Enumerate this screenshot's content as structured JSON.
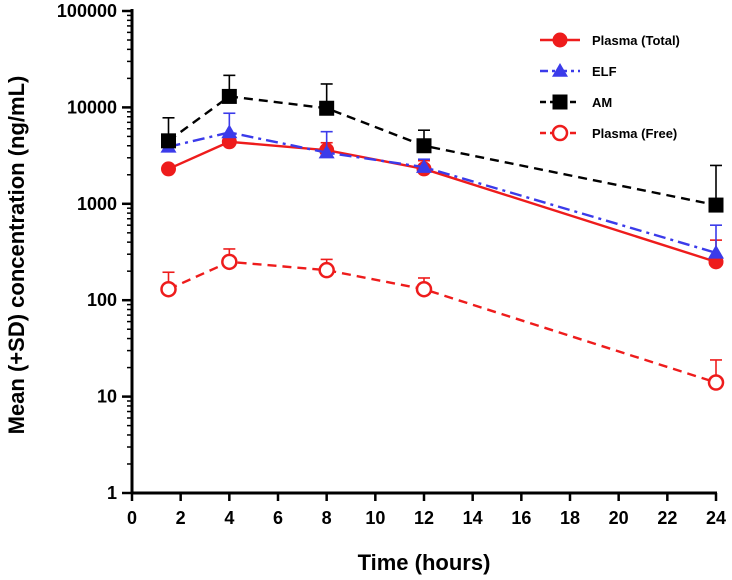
{
  "chart_data": {
    "type": "line",
    "xlabel": "Time (hours)",
    "ylabel": "Mean (+SD) concentration (ng/mL)",
    "xlim": [
      0,
      24
    ],
    "xticks": [
      0,
      2,
      4,
      6,
      8,
      10,
      12,
      14,
      16,
      18,
      20,
      22,
      24
    ],
    "ylim": [
      1,
      100000
    ],
    "yscale": "log",
    "yticks": [
      1,
      10,
      100,
      1000,
      10000,
      100000
    ],
    "grid": false,
    "legend_position": "top-right",
    "x": [
      1.5,
      4,
      8,
      12,
      24
    ],
    "series": [
      {
        "name": "Plasma (Total)",
        "values": [
          2300,
          4400,
          3600,
          2300,
          250
        ],
        "sd_upper": [
          2300,
          4400,
          4300,
          2800,
          420
        ],
        "color": "#ee1c1c",
        "line": "solid",
        "marker": "circle-filled"
      },
      {
        "name": "ELF",
        "values": [
          3900,
          5500,
          3400,
          2400,
          310
        ],
        "sd_upper": [
          5200,
          8700,
          5600,
          2900,
          600
        ],
        "color": "#3b3bea",
        "line": "dashdot",
        "marker": "triangle-filled"
      },
      {
        "name": "AM",
        "values": [
          4500,
          13000,
          9800,
          4000,
          970
        ],
        "sd_upper": [
          7800,
          21500,
          17500,
          5800,
          2500
        ],
        "color": "#000000",
        "line": "dashed",
        "marker": "square-filled"
      },
      {
        "name": "Plasma (Free)",
        "values": [
          130,
          250,
          205,
          130,
          14
        ],
        "sd_upper": [
          195,
          340,
          265,
          170,
          24
        ],
        "color": "#ee1c1c",
        "line": "dashed",
        "marker": "circle-open"
      }
    ]
  }
}
